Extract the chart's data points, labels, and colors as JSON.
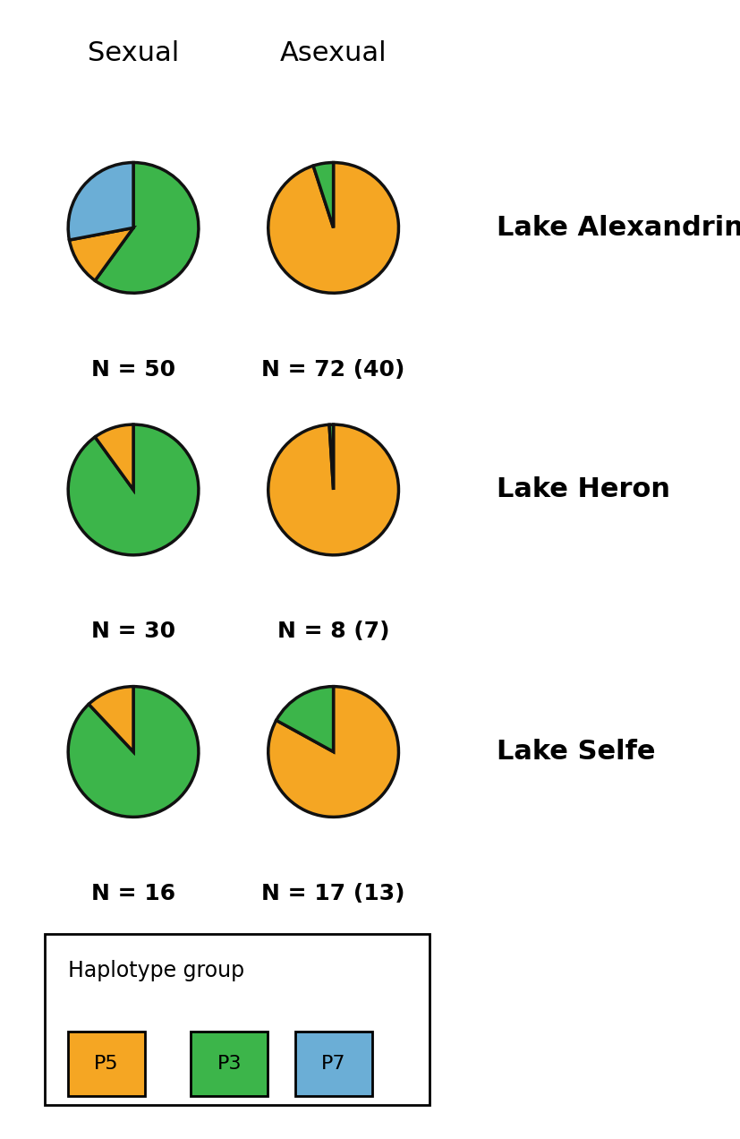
{
  "colors": {
    "orange": "#F5A623",
    "green": "#3CB54A",
    "blue": "#6BAED6"
  },
  "pies": [
    {
      "label": "Lake Alexandrina",
      "sexual": {
        "values": [
          60,
          12,
          28
        ],
        "colors": [
          "green",
          "orange",
          "blue"
        ],
        "n": "N = 50"
      },
      "asexual": {
        "values": [
          95,
          5
        ],
        "colors": [
          "orange",
          "green"
        ],
        "n": "N = 72 (40)"
      }
    },
    {
      "label": "Lake Heron",
      "sexual": {
        "values": [
          90,
          10
        ],
        "colors": [
          "green",
          "orange"
        ],
        "n": "N = 30"
      },
      "asexual": {
        "values": [
          99,
          1
        ],
        "colors": [
          "orange",
          "green"
        ],
        "n": "N = 8 (7)"
      }
    },
    {
      "label": "Lake Selfe",
      "sexual": {
        "values": [
          88,
          12
        ],
        "colors": [
          "green",
          "orange"
        ],
        "n": "N = 16"
      },
      "asexual": {
        "values": [
          83,
          17
        ],
        "colors": [
          "orange",
          "green"
        ],
        "n": "N = 17 (13)"
      }
    }
  ],
  "headers": [
    "Sexual",
    "Asexual"
  ],
  "legend_title": "Haplotype group",
  "legend_items": [
    {
      "label": "P5",
      "color": "orange"
    },
    {
      "label": "P3",
      "color": "green"
    },
    {
      "label": "P7",
      "color": "blue"
    }
  ],
  "pie_lw": 2.5,
  "pie_edge_color": "#111111",
  "header_fontsize": 22,
  "label_fontsize": 20,
  "n_fontsize": 18,
  "lake_fontsize": 22
}
